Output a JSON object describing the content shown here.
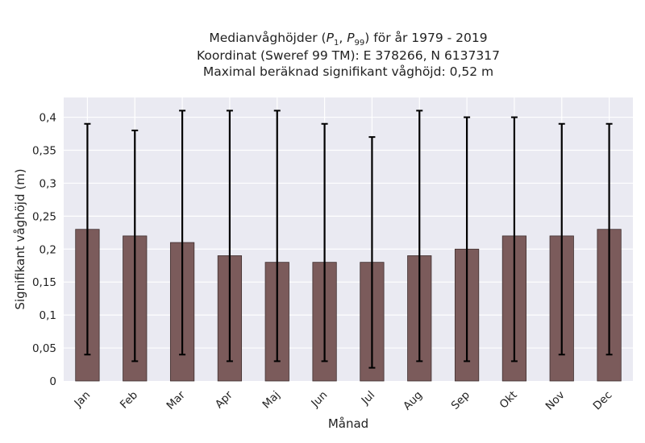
{
  "chart_data": {
    "type": "bar",
    "title_lines": [
      "Medianvåghöjder (P1, P99) för år 1979 - 2019",
      "Koordinat (Sweref 99 TM): E 378266, N 6137317",
      "Maximal beräknad signifikant våghöjd: 0,52 m"
    ],
    "xlabel": "Månad",
    "ylabel": "Signifikant våghöjd (m)",
    "categories": [
      "Jan",
      "Feb",
      "Mar",
      "Apr",
      "Maj",
      "Jun",
      "Jul",
      "Aug",
      "Sep",
      "Okt",
      "Nov",
      "Dec"
    ],
    "values": [
      0.23,
      0.22,
      0.21,
      0.19,
      0.18,
      0.18,
      0.18,
      0.19,
      0.2,
      0.22,
      0.22,
      0.23
    ],
    "p1": [
      0.04,
      0.03,
      0.04,
      0.03,
      0.03,
      0.03,
      0.02,
      0.03,
      0.03,
      0.03,
      0.04,
      0.04
    ],
    "p99": [
      0.39,
      0.38,
      0.41,
      0.41,
      0.41,
      0.39,
      0.37,
      0.41,
      0.4,
      0.4,
      0.39,
      0.39
    ],
    "ylim": [
      0,
      0.43
    ],
    "yticks": [
      0,
      0.05,
      0.1,
      0.15,
      0.2,
      0.25,
      0.3,
      0.35,
      0.4
    ],
    "ytick_labels": [
      "0",
      "0,05",
      "0,1",
      "0,15",
      "0,2",
      "0,25",
      "0,3",
      "0,35",
      "0,4"
    ],
    "grid": true,
    "colors": {
      "bar": "#7b5b5b",
      "bar_edge": "#3f2f2f",
      "errorbar": "#000000",
      "background": "#eaeaf2",
      "grid": "#ffffff"
    }
  }
}
